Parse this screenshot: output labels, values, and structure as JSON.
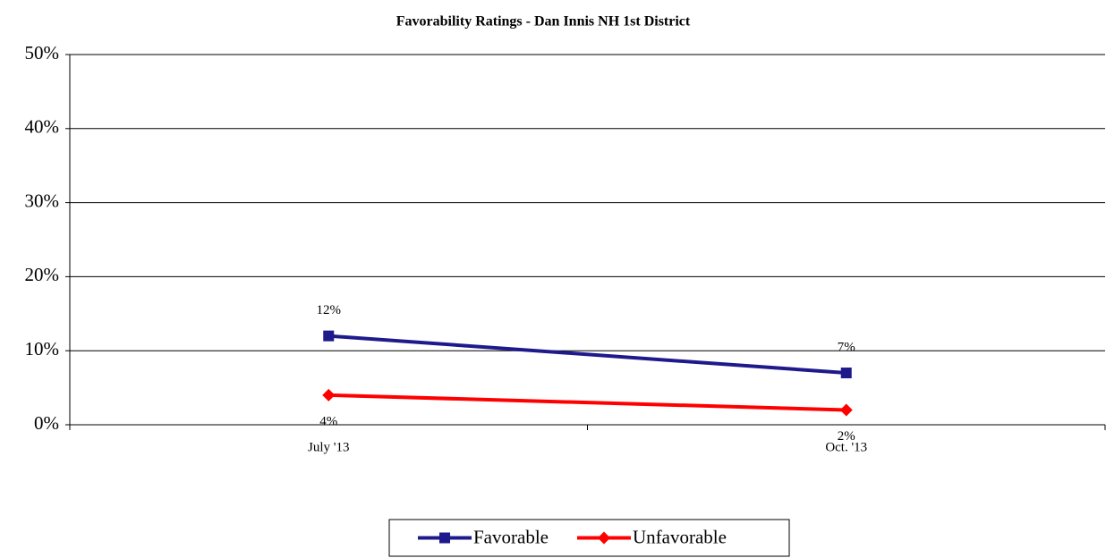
{
  "chart_data": {
    "type": "line",
    "title": "Favorability Ratings - Dan Innis  NH 1st District",
    "categories": [
      "July '13",
      "Oct. '13"
    ],
    "series": [
      {
        "name": "Favorable",
        "color": "#1f1a8c",
        "marker": "square",
        "values": [
          12,
          7
        ],
        "value_labels": [
          "12%",
          "7%"
        ]
      },
      {
        "name": "Unfavorable",
        "color": "#ff0000",
        "marker": "diamond",
        "values": [
          4,
          2
        ],
        "value_labels": [
          "4%",
          "2%"
        ]
      }
    ],
    "ylim": [
      0,
      50
    ],
    "yticks": [
      {
        "value": 0,
        "label": "0%"
      },
      {
        "value": 10,
        "label": "10%"
      },
      {
        "value": 20,
        "label": "20%"
      },
      {
        "value": 30,
        "label": "30%"
      },
      {
        "value": 40,
        "label": "40%"
      },
      {
        "value": 50,
        "label": "50%"
      }
    ],
    "grid": true,
    "legend": "bottom"
  }
}
